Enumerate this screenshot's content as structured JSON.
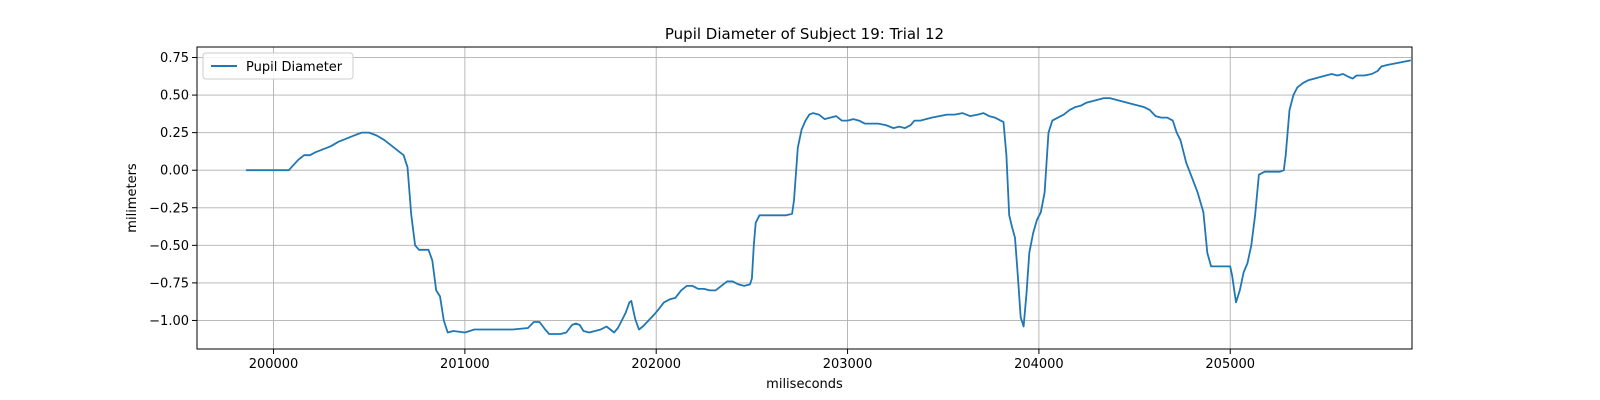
{
  "chart_data": {
    "type": "line",
    "title": "Pupil Diameter of Subject 19: Trial 12",
    "xlabel": "miliseconds",
    "ylabel": "milimeters",
    "xlim": [
      199600,
      205950
    ],
    "ylim": [
      -1.19,
      0.82
    ],
    "xticks": [
      200000,
      201000,
      202000,
      203000,
      204000,
      205000
    ],
    "yticks": [
      0.75,
      0.5,
      0.25,
      0.0,
      -0.25,
      -0.5,
      -0.75,
      -1.0
    ],
    "xtick_labels": [
      "200000",
      "201000",
      "202000",
      "203000",
      "204000",
      "205000"
    ],
    "ytick_labels": [
      "0.75",
      "0.50",
      "0.25",
      "0.00",
      "−0.25",
      "−0.50",
      "−0.75",
      "−1.00"
    ],
    "grid": true,
    "legend": "upper-left",
    "series": [
      {
        "name": "Pupil Diameter",
        "color": "#1f77b4",
        "points": [
          [
            199860,
            0.0
          ],
          [
            200050,
            0.0
          ],
          [
            200080,
            0.0
          ],
          [
            200130,
            0.07
          ],
          [
            200160,
            0.1
          ],
          [
            200190,
            0.1
          ],
          [
            200220,
            0.12
          ],
          [
            200260,
            0.14
          ],
          [
            200300,
            0.16
          ],
          [
            200340,
            0.19
          ],
          [
            200380,
            0.21
          ],
          [
            200420,
            0.23
          ],
          [
            200460,
            0.25
          ],
          [
            200500,
            0.25
          ],
          [
            200540,
            0.23
          ],
          [
            200580,
            0.2
          ],
          [
            200620,
            0.16
          ],
          [
            200660,
            0.12
          ],
          [
            200680,
            0.1
          ],
          [
            200700,
            0.02
          ],
          [
            200720,
            -0.3
          ],
          [
            200740,
            -0.5
          ],
          [
            200760,
            -0.53
          ],
          [
            200810,
            -0.53
          ],
          [
            200830,
            -0.6
          ],
          [
            200850,
            -0.8
          ],
          [
            200870,
            -0.84
          ],
          [
            200890,
            -1.0
          ],
          [
            200910,
            -1.08
          ],
          [
            200940,
            -1.07
          ],
          [
            201000,
            -1.08
          ],
          [
            201050,
            -1.06
          ],
          [
            201150,
            -1.06
          ],
          [
            201250,
            -1.06
          ],
          [
            201330,
            -1.05
          ],
          [
            201360,
            -1.01
          ],
          [
            201390,
            -1.01
          ],
          [
            201420,
            -1.06
          ],
          [
            201440,
            -1.09
          ],
          [
            201470,
            -1.09
          ],
          [
            201500,
            -1.09
          ],
          [
            201530,
            -1.08
          ],
          [
            201560,
            -1.03
          ],
          [
            201580,
            -1.02
          ],
          [
            201600,
            -1.03
          ],
          [
            201620,
            -1.07
          ],
          [
            201650,
            -1.08
          ],
          [
            201680,
            -1.07
          ],
          [
            201710,
            -1.06
          ],
          [
            201740,
            -1.04
          ],
          [
            201760,
            -1.06
          ],
          [
            201780,
            -1.08
          ],
          [
            201800,
            -1.05
          ],
          [
            201820,
            -1.0
          ],
          [
            201840,
            -0.95
          ],
          [
            201860,
            -0.88
          ],
          [
            201870,
            -0.87
          ],
          [
            201890,
            -0.99
          ],
          [
            201910,
            -1.06
          ],
          [
            201930,
            -1.04
          ],
          [
            201960,
            -1.0
          ],
          [
            201990,
            -0.96
          ],
          [
            202010,
            -0.93
          ],
          [
            202040,
            -0.88
          ],
          [
            202070,
            -0.86
          ],
          [
            202100,
            -0.85
          ],
          [
            202130,
            -0.8
          ],
          [
            202160,
            -0.77
          ],
          [
            202190,
            -0.77
          ],
          [
            202220,
            -0.79
          ],
          [
            202250,
            -0.79
          ],
          [
            202280,
            -0.8
          ],
          [
            202310,
            -0.8
          ],
          [
            202340,
            -0.77
          ],
          [
            202370,
            -0.74
          ],
          [
            202400,
            -0.74
          ],
          [
            202430,
            -0.76
          ],
          [
            202460,
            -0.77
          ],
          [
            202490,
            -0.76
          ],
          [
            202500,
            -0.72
          ],
          [
            202510,
            -0.5
          ],
          [
            202520,
            -0.35
          ],
          [
            202540,
            -0.3
          ],
          [
            202600,
            -0.3
          ],
          [
            202680,
            -0.3
          ],
          [
            202710,
            -0.29
          ],
          [
            202720,
            -0.2
          ],
          [
            202740,
            0.15
          ],
          [
            202760,
            0.27
          ],
          [
            202780,
            0.33
          ],
          [
            202800,
            0.37
          ],
          [
            202820,
            0.38
          ],
          [
            202850,
            0.37
          ],
          [
            202880,
            0.34
          ],
          [
            202910,
            0.35
          ],
          [
            202940,
            0.36
          ],
          [
            202970,
            0.33
          ],
          [
            203000,
            0.33
          ],
          [
            203030,
            0.34
          ],
          [
            203060,
            0.33
          ],
          [
            203090,
            0.31
          ],
          [
            203120,
            0.31
          ],
          [
            203160,
            0.31
          ],
          [
            203200,
            0.3
          ],
          [
            203240,
            0.28
          ],
          [
            203270,
            0.29
          ],
          [
            203300,
            0.28
          ],
          [
            203330,
            0.3
          ],
          [
            203350,
            0.33
          ],
          [
            203380,
            0.33
          ],
          [
            203410,
            0.34
          ],
          [
            203440,
            0.35
          ],
          [
            203480,
            0.36
          ],
          [
            203520,
            0.37
          ],
          [
            203560,
            0.37
          ],
          [
            203600,
            0.38
          ],
          [
            203640,
            0.36
          ],
          [
            203680,
            0.37
          ],
          [
            203710,
            0.38
          ],
          [
            203740,
            0.36
          ],
          [
            203770,
            0.35
          ],
          [
            203800,
            0.33
          ],
          [
            203815,
            0.32
          ],
          [
            203830,
            0.1
          ],
          [
            203845,
            -0.3
          ],
          [
            203860,
            -0.38
          ],
          [
            203875,
            -0.45
          ],
          [
            203890,
            -0.7
          ],
          [
            203905,
            -0.98
          ],
          [
            203920,
            -1.04
          ],
          [
            203935,
            -0.82
          ],
          [
            203950,
            -0.55
          ],
          [
            203970,
            -0.42
          ],
          [
            203990,
            -0.33
          ],
          [
            204010,
            -0.28
          ],
          [
            204030,
            -0.15
          ],
          [
            204050,
            0.25
          ],
          [
            204070,
            0.33
          ],
          [
            204100,
            0.35
          ],
          [
            204130,
            0.37
          ],
          [
            204160,
            0.4
          ],
          [
            204190,
            0.42
          ],
          [
            204220,
            0.43
          ],
          [
            204250,
            0.45
          ],
          [
            204280,
            0.46
          ],
          [
            204310,
            0.47
          ],
          [
            204340,
            0.48
          ],
          [
            204370,
            0.48
          ],
          [
            204400,
            0.47
          ],
          [
            204430,
            0.46
          ],
          [
            204460,
            0.45
          ],
          [
            204490,
            0.44
          ],
          [
            204520,
            0.43
          ],
          [
            204550,
            0.42
          ],
          [
            204580,
            0.4
          ],
          [
            204610,
            0.36
          ],
          [
            204640,
            0.35
          ],
          [
            204670,
            0.35
          ],
          [
            204700,
            0.33
          ],
          [
            204720,
            0.25
          ],
          [
            204740,
            0.2
          ],
          [
            204770,
            0.05
          ],
          [
            204800,
            -0.05
          ],
          [
            204830,
            -0.15
          ],
          [
            204860,
            -0.28
          ],
          [
            204880,
            -0.55
          ],
          [
            204900,
            -0.64
          ],
          [
            204930,
            -0.64
          ],
          [
            204970,
            -0.64
          ],
          [
            205000,
            -0.64
          ],
          [
            205010,
            -0.7
          ],
          [
            205030,
            -0.88
          ],
          [
            205050,
            -0.8
          ],
          [
            205070,
            -0.68
          ],
          [
            205090,
            -0.62
          ],
          [
            205110,
            -0.5
          ],
          [
            205130,
            -0.3
          ],
          [
            205150,
            -0.03
          ],
          [
            205180,
            -0.01
          ],
          [
            205230,
            -0.01
          ],
          [
            205260,
            -0.01
          ],
          [
            205280,
            0.0
          ],
          [
            205290,
            0.1
          ],
          [
            205310,
            0.4
          ],
          [
            205330,
            0.5
          ],
          [
            205350,
            0.55
          ],
          [
            205380,
            0.58
          ],
          [
            205410,
            0.6
          ],
          [
            205440,
            0.61
          ],
          [
            205470,
            0.62
          ],
          [
            205500,
            0.63
          ],
          [
            205530,
            0.64
          ],
          [
            205560,
            0.63
          ],
          [
            205590,
            0.64
          ],
          [
            205620,
            0.62
          ],
          [
            205640,
            0.61
          ],
          [
            205660,
            0.63
          ],
          [
            205700,
            0.63
          ],
          [
            205740,
            0.64
          ],
          [
            205770,
            0.66
          ],
          [
            205790,
            0.69
          ],
          [
            205820,
            0.7
          ],
          [
            205860,
            0.71
          ],
          [
            205900,
            0.72
          ],
          [
            205940,
            0.73
          ]
        ]
      }
    ]
  }
}
